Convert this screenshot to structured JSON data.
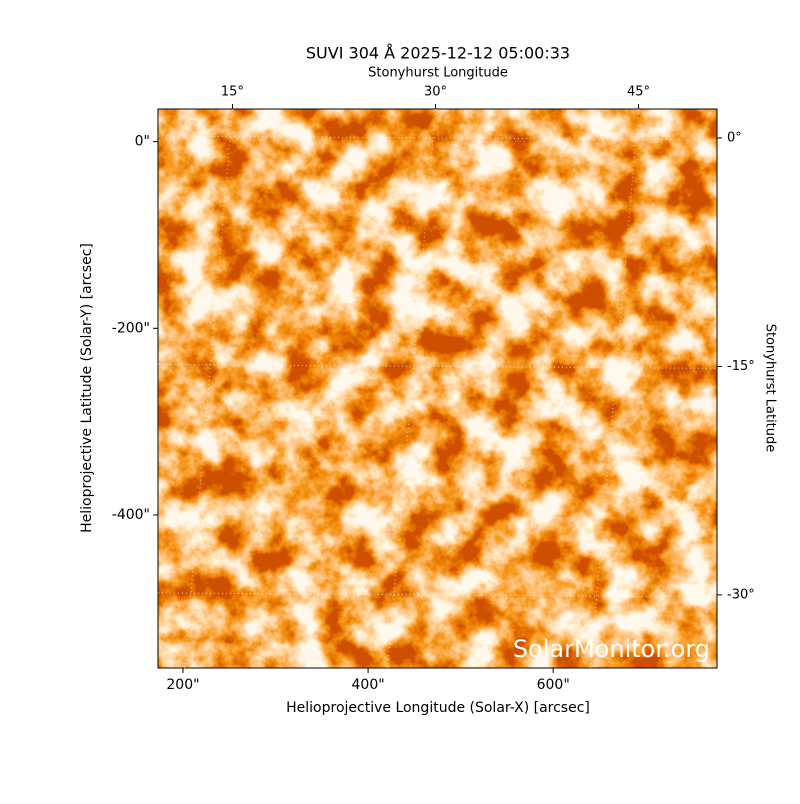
{
  "chart_data": {
    "type": "image",
    "title": "SUVI 304 Å 2025-12-12 05:00:33",
    "xlabel": "Helioprojective Longitude (Solar-X) [arcsec]",
    "ylabel": "Helioprojective Latitude (Solar-Y) [arcsec]",
    "x2label": "Stonyhurst Longitude",
    "y2label": "Stonyhurst Latitude",
    "xlim": [
      173,
      777
    ],
    "xticks": [
      {
        "value": 200,
        "label": "200\""
      },
      {
        "value": 400,
        "label": "400\""
      },
      {
        "value": 600,
        "label": "600\""
      }
    ],
    "ylim": [
      -564,
      35
    ],
    "yticks": [
      {
        "value": 0,
        "label": "0\""
      },
      {
        "value": -200,
        "label": "-200\""
      },
      {
        "value": -400,
        "label": "-400\""
      }
    ],
    "x2lim": [
      9.5,
      50.8
    ],
    "x2ticks": [
      {
        "value": 15,
        "label": "15°"
      },
      {
        "value": 30,
        "label": "30°"
      },
      {
        "value": 45,
        "label": "45°"
      }
    ],
    "y2lim": [
      -34.8,
      1.9
    ],
    "y2ticks": [
      {
        "value": 0,
        "label": "0°"
      },
      {
        "value": -15,
        "label": "-15°"
      },
      {
        "value": -30,
        "label": "-30°"
      }
    ],
    "grid": true,
    "watermark": "SolarMonitor.org"
  }
}
